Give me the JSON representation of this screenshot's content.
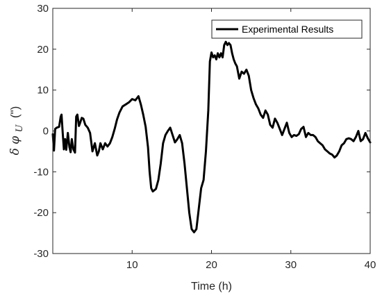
{
  "chart_data": {
    "type": "line",
    "title": "",
    "xlabel": "Time (h)",
    "ylabel": {
      "main": "δ φ",
      "subscript": "U",
      "unit": "(\")"
    },
    "xlim": [
      0,
      40
    ],
    "ylim": [
      -30,
      30
    ],
    "xticks": [
      10,
      20,
      30,
      40
    ],
    "yticks": [
      30,
      20,
      10,
      0,
      -10,
      -20,
      -30
    ],
    "grid": false,
    "legend": {
      "position": "top-right",
      "entries": [
        "Experimental Results"
      ]
    },
    "series": [
      {
        "name": "Experimental Results",
        "color": "#000000",
        "x": [
          0.0,
          0.15,
          0.3,
          0.5,
          0.8,
          1.0,
          1.1,
          1.25,
          1.4,
          1.55,
          1.7,
          1.9,
          2.1,
          2.25,
          2.4,
          2.6,
          2.8,
          2.95,
          3.1,
          3.3,
          3.45,
          3.65,
          3.85,
          4.1,
          4.4,
          4.7,
          5.0,
          5.3,
          5.6,
          5.8,
          6.0,
          6.3,
          6.6,
          6.9,
          7.2,
          7.5,
          7.8,
          8.1,
          8.4,
          8.8,
          9.2,
          9.6,
          10.0,
          10.4,
          10.8,
          11.1,
          11.4,
          11.7,
          12.0,
          12.2,
          12.4,
          12.6,
          12.8,
          13.0,
          13.3,
          13.6,
          13.9,
          14.2,
          14.5,
          14.8,
          15.1,
          15.4,
          15.7,
          16.0,
          16.3,
          16.6,
          16.9,
          17.2,
          17.5,
          17.8,
          18.1,
          18.4,
          18.7,
          19.0,
          19.3,
          19.6,
          19.8,
          20.0,
          20.2,
          20.4,
          20.6,
          20.8,
          21.0,
          21.2,
          21.4,
          21.6,
          21.8,
          22.0,
          22.2,
          22.4,
          22.6,
          22.8,
          23.0,
          23.2,
          23.5,
          23.8,
          24.1,
          24.4,
          24.7,
          25.0,
          25.3,
          25.6,
          25.9,
          26.2,
          26.5,
          26.8,
          27.1,
          27.4,
          27.7,
          28.0,
          28.3,
          28.6,
          28.9,
          29.2,
          29.5,
          29.8,
          30.1,
          30.4,
          30.7,
          31.0,
          31.3,
          31.6,
          31.9,
          32.2,
          32.5,
          32.8,
          33.1,
          33.4,
          33.7,
          34.0,
          34.3,
          34.6,
          34.9,
          35.2,
          35.5,
          35.8,
          36.1,
          36.4,
          36.7,
          37.0,
          37.3,
          37.6,
          37.9,
          38.2,
          38.5,
          38.8,
          39.1,
          39.4,
          39.7,
          40.0
        ],
        "y": [
          -0.8,
          -4.8,
          0.5,
          0.8,
          1.0,
          3.5,
          4.0,
          -0.5,
          -4.5,
          -2.0,
          -4.6,
          -0.5,
          -4.0,
          -5.2,
          -2.0,
          -4.5,
          -5.3,
          3.5,
          4.0,
          1.2,
          2.0,
          3.2,
          3.0,
          1.5,
          0.8,
          -0.5,
          -5.0,
          -3.0,
          -6.0,
          -5.0,
          -3.0,
          -4.5,
          -3.0,
          -3.8,
          -3.0,
          -1.5,
          0.5,
          2.8,
          4.5,
          6.0,
          6.5,
          7.0,
          7.8,
          7.5,
          8.5,
          6.5,
          4.0,
          1.0,
          -4.0,
          -10.0,
          -14.0,
          -14.8,
          -14.5,
          -14.2,
          -12.0,
          -8.0,
          -3.0,
          -1.0,
          0.0,
          0.8,
          -1.0,
          -2.8,
          -2.0,
          -1.0,
          -3.0,
          -8.0,
          -14.0,
          -20.0,
          -24.0,
          -24.8,
          -24.0,
          -19.0,
          -14.0,
          -12.0,
          -5.0,
          5.0,
          17.0,
          19.2,
          18.0,
          18.5,
          17.5,
          19.0,
          18.0,
          19.0,
          18.0,
          21.0,
          21.8,
          21.0,
          21.5,
          21.0,
          19.0,
          17.5,
          16.5,
          15.8,
          12.8,
          14.5,
          14.0,
          15.0,
          13.5,
          10.0,
          8.0,
          6.5,
          5.5,
          4.0,
          3.2,
          5.0,
          4.0,
          1.5,
          0.8,
          3.0,
          2.0,
          0.5,
          -1.0,
          0.5,
          2.0,
          -0.5,
          -1.5,
          -1.0,
          -1.2,
          -0.8,
          0.5,
          1.0,
          -1.5,
          -0.5,
          -1.0,
          -1.0,
          -1.5,
          -2.5,
          -3.0,
          -3.5,
          -4.5,
          -5.0,
          -5.5,
          -5.8,
          -6.5,
          -6.0,
          -5.0,
          -3.5,
          -3.0,
          -2.0,
          -1.8,
          -2.0,
          -2.5,
          -1.5,
          0.0,
          -2.5,
          -2.0,
          -0.5,
          -1.8,
          -2.8
        ]
      }
    ]
  }
}
